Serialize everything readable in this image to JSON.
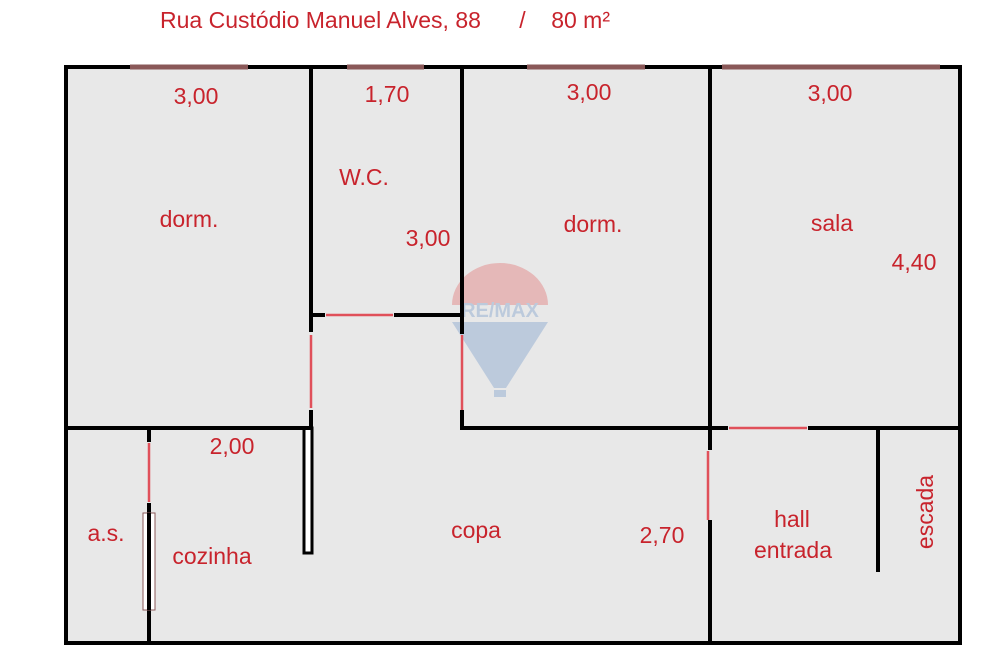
{
  "title": "Rua Custódio Manuel Alves, 88      /    80 m²",
  "watermark": "RE/MAX",
  "colors": {
    "text": "#c8232c",
    "floor": "#e8e8e8",
    "wall": "#000000",
    "door": "#e0505a"
  },
  "dimensions": {
    "top_dorm_left": "3,00",
    "top_wc": "1,70",
    "top_dorm_mid": "3,00",
    "top_sala": "3,00",
    "wc_depth": "3,00",
    "sala_depth": "4,40",
    "cozinha_width": "2,00",
    "copa_depth": "2,70"
  },
  "rooms": {
    "dorm_left": "dorm.",
    "wc": "W.C.",
    "dorm_mid": "dorm.",
    "sala": "sala",
    "as": "a.s.",
    "cozinha": "cozinha",
    "copa": "copa",
    "hall_line1": "hall",
    "hall_line2": "entrada",
    "escada": "escada"
  }
}
